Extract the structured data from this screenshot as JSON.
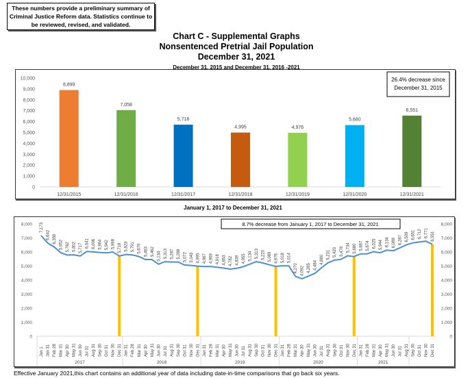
{
  "disclaimer": "These numbers provide a preliminary summary of Criminal Justice Reform data.  Statistics continue to be reviewed, revised, and validated.",
  "header": {
    "title1": "Chart C - Supplemental Graphs",
    "title2": "Nonsentenced Pretrial Jail Population",
    "title3": "December 31, 2021",
    "subtitle": "December 31, 2015 and December 31, 2016 -2021"
  },
  "line_subtitle": "January 1, 2017 to December 31, 2021",
  "footnote": "Effective January 2021,this chart contains an additional year of data including date-in-time comparisons that go back six years.",
  "chart_data": [
    {
      "type": "bar",
      "title": "December 31, 2015 and December 31, 2016 -2021",
      "categories": [
        "12/31/2015",
        "12/31/2016",
        "12/31/2017",
        "12/31/2018",
        "12/31/2019",
        "12/31/2020",
        "12/31/2021"
      ],
      "values": [
        8899,
        7058,
        5718,
        4995,
        4976,
        5680,
        6551
      ],
      "value_labels": [
        "8,899",
        "7,058",
        "5,718",
        "4,995",
        "4,976",
        "5,680",
        "6,551"
      ],
      "colors": [
        "#ED7D31",
        "#70AD47",
        "#0070C0",
        "#C55A11",
        "#92D050",
        "#00B0F0",
        "#548235"
      ],
      "ylim": [
        0,
        10000
      ],
      "yticks": [
        "0",
        "1,000",
        "2,000",
        "3,000",
        "4,000",
        "5,000",
        "6,000",
        "7,000",
        "8,000",
        "9,000",
        "10,000"
      ],
      "annotation": "26.4% decrease since December 31, 2015",
      "annotation_lines": [
        "26.4% decrease since",
        "December 31, 2015"
      ],
      "xlabel": "",
      "ylabel": "",
      "grid": false
    },
    {
      "type": "line",
      "title": "January 1, 2017 to December 31, 2021",
      "years": [
        "2017",
        "2018",
        "2019",
        "2020",
        "2021"
      ],
      "x": [
        "Jan 1",
        "Jan 31",
        "Feb 28",
        "Mar 31",
        "Apr 30",
        "May 31",
        "Jun 30",
        "Jul 31",
        "Aug 31",
        "Sep 30",
        "Oct 31",
        "Nov 30",
        "Dec 31",
        "Jan 31",
        "Feb 28",
        "Mar 31",
        "Apr 30",
        "May 31",
        "Jun 30",
        "Jul 31",
        "Aug 31",
        "Sep 30",
        "Oct 31",
        "Nov 30",
        "Dec 31",
        "Jan 31",
        "Feb 28",
        "Mar 31",
        "Apr 30",
        "May 31",
        "Jun 30",
        "Jul 31",
        "Aug 31",
        "Sep 30",
        "Oct 31",
        "Nov 30",
        "Dec 31",
        "Jan 31",
        "Feb 28",
        "Mar 31",
        "Apr 30",
        "May 31",
        "Jun 30",
        "Jul 31",
        "Aug 31",
        "Sep 30",
        "Oct 31",
        "Nov 30",
        "Dec 31",
        "Jan 31",
        "Feb 28",
        "Mar 31",
        "Apr 30",
        "May 31",
        "Jun 30",
        "Jul 31",
        "Aug 31",
        "Sep 30",
        "Oct 31",
        "Nov 30",
        "Dec 31"
      ],
      "values": [
        7173,
        6642,
        6359,
        5952,
        5782,
        5802,
        5717,
        6041,
        6006,
        5964,
        5942,
        5998,
        5718,
        5823,
        5791,
        5679,
        5463,
        5462,
        5134,
        5313,
        5287,
        5288,
        5072,
        5043,
        4995,
        4967,
        4969,
        4918,
        4853,
        4782,
        4839,
        4955,
        5134,
        5313,
        5220,
        5089,
        4976,
        5018,
        5014,
        4270,
        4092,
        4285,
        4484,
        4880,
        5231,
        5420,
        5478,
        5734,
        5680,
        5867,
        5874,
        6025,
        5944,
        6134,
        6088,
        6287,
        6509,
        6651,
        6712,
        6771,
        6551
      ],
      "year_group_sizes": [
        13,
        12,
        12,
        12,
        12
      ],
      "highlight_indices": [
        12,
        24,
        36,
        48,
        60
      ],
      "line_color": "#4A8FD4",
      "highlight_color": "#FFC000",
      "ylim": [
        0,
        8000
      ],
      "yticks": [
        "0",
        "1,000",
        "2,000",
        "3,000",
        "4,000",
        "5,000",
        "6,000",
        "7,000",
        "8,000"
      ],
      "annotation": "8.7% decrease from January  1, 2017 to December 31, 2021",
      "xlabel": "",
      "ylabel": "",
      "grid": false
    }
  ]
}
